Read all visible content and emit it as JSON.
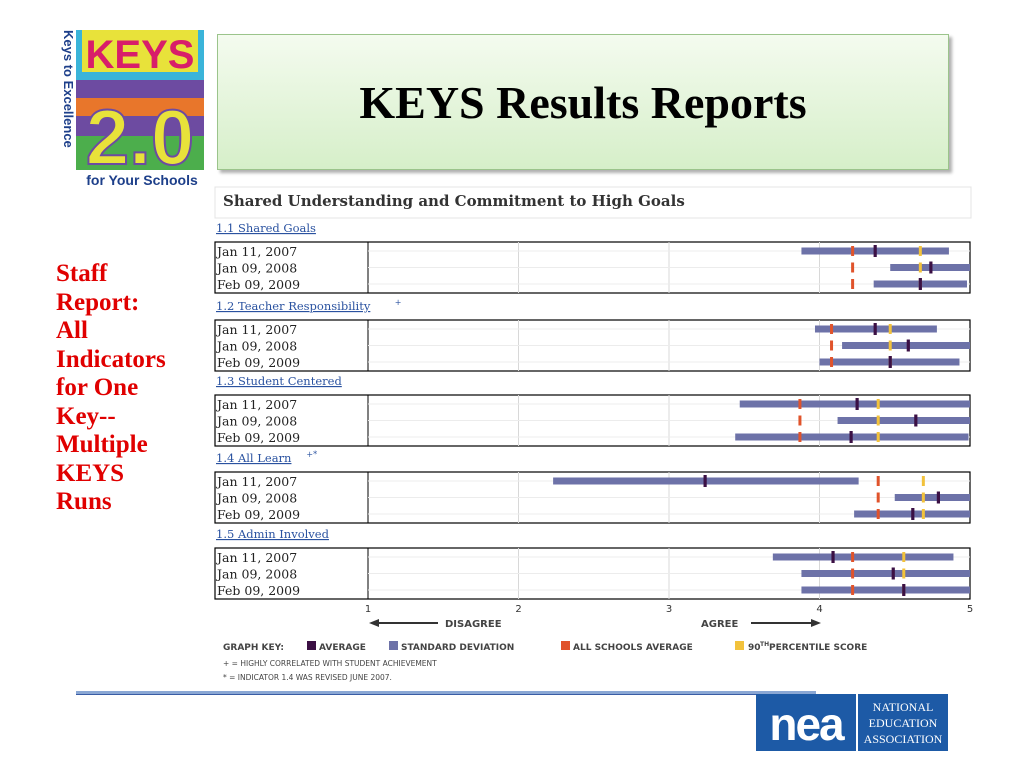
{
  "slide_title": "KEYS Results Reports",
  "logo": {
    "vertical_text": "Keys to Excellence",
    "keys_text": "KEYS",
    "version_text": "2.0",
    "tagline": "for Your Schools"
  },
  "side_caption": [
    "Staff",
    "Report:",
    "All",
    "Indicators",
    "for One",
    "Key--",
    "Multiple",
    "KEYS",
    "Runs"
  ],
  "report": {
    "heading": "Shared Understanding and Commitment to High Goals",
    "colors": {
      "average": "#3b1044",
      "std_dev": "#6d72a8",
      "all_schools": "#e0532b",
      "percentile90": "#f2c23c"
    },
    "axis": {
      "min": 1,
      "max": 5,
      "ticks": [
        "1",
        "2",
        "3",
        "4",
        "5"
      ]
    },
    "disagree_label": "DISAGREE",
    "agree_label": "AGREE",
    "graph_key": {
      "label": "GRAPH KEY:",
      "average": "AVERAGE",
      "std_dev": "STANDARD DEVIATION",
      "all_schools": "ALL SCHOOLS AVERAGE",
      "percentile_prefix": "90",
      "percentile_sup": "TH",
      "percentile_suffix": " PERCENTILE SCORE"
    },
    "footnotes": [
      "+ = HIGHLY CORRELATED WITH STUDENT ACHIEVEMENT",
      "* = INDICATOR 1.4 WAS REVISED JUNE 2007."
    ]
  },
  "chart_data": {
    "type": "bar",
    "xlim": [
      1,
      5
    ],
    "indicators": [
      {
        "label": "1.1 Shared Goals",
        "sup": "",
        "runs": [
          {
            "date": "Jan 11, 2007",
            "sd": [
              3.88,
              4.86
            ],
            "avg": 4.37,
            "all_schools": 4.22,
            "p90": 4.67
          },
          {
            "date": "Jan 09, 2008",
            "sd": [
              4.47,
              5.0
            ],
            "avg": 4.74,
            "all_schools": 4.22,
            "p90": 4.67
          },
          {
            "date": "Feb 09, 2009",
            "sd": [
              4.36,
              4.98
            ],
            "avg": 4.67,
            "all_schools": 4.22,
            "p90": 4.67
          }
        ]
      },
      {
        "label": "1.2 Teacher Responsibility",
        "sup": "+",
        "runs": [
          {
            "date": "Jan 11, 2007",
            "sd": [
              3.97,
              4.78
            ],
            "avg": 4.37,
            "all_schools": 4.08,
            "p90": 4.47
          },
          {
            "date": "Jan 09, 2008",
            "sd": [
              4.15,
              5.0
            ],
            "avg": 4.59,
            "all_schools": 4.08,
            "p90": 4.47
          },
          {
            "date": "Feb 09, 2009",
            "sd": [
              4.0,
              4.93
            ],
            "avg": 4.47,
            "all_schools": 4.08,
            "p90": 4.47
          }
        ]
      },
      {
        "label": "1.3 Student Centered",
        "sup": "",
        "runs": [
          {
            "date": "Jan 11, 2007",
            "sd": [
              3.47,
              5.0
            ],
            "avg": 4.25,
            "all_schools": 3.87,
            "p90": 4.39
          },
          {
            "date": "Jan 09, 2008",
            "sd": [
              4.12,
              5.0
            ],
            "avg": 4.64,
            "all_schools": 3.87,
            "p90": 4.39
          },
          {
            "date": "Feb 09, 2009",
            "sd": [
              3.44,
              4.99
            ],
            "avg": 4.21,
            "all_schools": 3.87,
            "p90": 4.39
          }
        ]
      },
      {
        "label": "1.4 All Learn",
        "sup": "+*",
        "runs": [
          {
            "date": "Jan 11, 2007",
            "sd": [
              2.23,
              4.26
            ],
            "avg": 3.24,
            "all_schools": 4.39,
            "p90": 4.69
          },
          {
            "date": "Jan 09, 2008",
            "sd": [
              4.5,
              5.0
            ],
            "avg": 4.79,
            "all_schools": 4.39,
            "p90": 4.69
          },
          {
            "date": "Feb 09, 2009",
            "sd": [
              4.23,
              5.0
            ],
            "avg": 4.62,
            "all_schools": 4.39,
            "p90": 4.69
          }
        ]
      },
      {
        "label": "1.5 Admin Involved",
        "sup": "",
        "runs": [
          {
            "date": "Jan 11, 2007",
            "sd": [
              3.69,
              4.89
            ],
            "avg": 4.09,
            "all_schools": 4.22,
            "p90": 4.56
          },
          {
            "date": "Jan 09, 2008",
            "sd": [
              3.88,
              5.0
            ],
            "avg": 4.49,
            "all_schools": 4.22,
            "p90": 4.56
          },
          {
            "date": "Feb 09, 2009",
            "sd": [
              3.88,
              5.0
            ],
            "avg": 4.56,
            "all_schools": 4.22,
            "p90": 4.56
          }
        ]
      }
    ]
  },
  "nea": {
    "mark": "nea",
    "lines": [
      "NATIONAL",
      "EDUCATION",
      "ASSOCIATION"
    ],
    "blue": "#1d5aa6"
  }
}
